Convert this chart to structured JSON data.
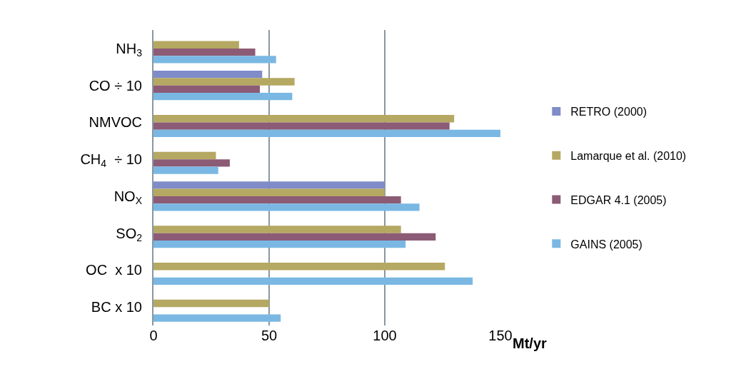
{
  "chart_data": {
    "type": "bar",
    "orientation": "horizontal",
    "xlabel": "Mt/yr",
    "categories": [
      "NH$_{3}$",
      "CO ÷ 10",
      "NMVOC",
      "CH$_{4}$  ÷ 10",
      "NO$_{X}$",
      "SO$_{2}$",
      "OC  x 10",
      "BC x 10"
    ],
    "series": [
      {
        "name": "RETRO (2000)",
        "color": "#7f8cc8",
        "values": [
          null,
          47,
          null,
          null,
          100,
          null,
          null,
          null
        ]
      },
      {
        "name": "Lamarque et al. (2010)",
        "color": "#b5a862",
        "values": [
          37,
          61,
          130,
          27,
          100,
          107,
          126,
          50
        ]
      },
      {
        "name": "EDGAR 4.1 (2005)",
        "color": "#8c5b76",
        "values": [
          44,
          46,
          128,
          33,
          107,
          122,
          null,
          null
        ]
      },
      {
        "name": "GAINS (2005)",
        "color": "#7ab8e3",
        "values": [
          53,
          60,
          150,
          28,
          115,
          109,
          138,
          55
        ]
      }
    ],
    "xlim": [
      0,
      150
    ],
    "xticks": [
      0,
      50,
      100,
      150
    ],
    "grid": "x",
    "legend": "right"
  }
}
